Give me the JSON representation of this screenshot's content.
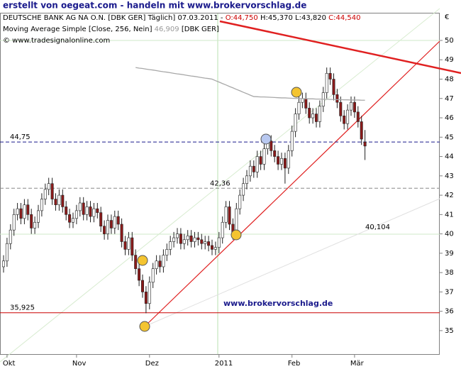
{
  "page_title": "erstellt von oegeat.com - handeln mit www.brokervorschlag.de",
  "chart_data": {
    "type": "candlestick",
    "header": {
      "instrument": "DEUTSCHE BANK AG NA O.N. [DBK GER]  Täglich] 07.03.2011 -",
      "open_text": "O:44,750",
      "hl_text": "H:45,370 L:43,820",
      "close_text": "C:44,540",
      "ma_name": "Moving Average Simple [Close, 256, Nein]",
      "ma_value": "46,909",
      "ma_symbol": "[DBK GER]",
      "source": "© www.tradesignalonline.com"
    },
    "watermark": "www.brokervorschlag.de",
    "currency": "€",
    "categories": [
      null,
      "Okt",
      null,
      null,
      null,
      null,
      null,
      null,
      null,
      null,
      null,
      null,
      null,
      null,
      null,
      null,
      null,
      null,
      null,
      null,
      null,
      "Nov",
      null,
      null,
      null,
      null,
      null,
      null,
      null,
      null,
      null,
      null,
      null,
      null,
      null,
      null,
      null,
      null,
      null,
      null,
      null,
      null,
      "Dez",
      null,
      null,
      null,
      null,
      null,
      null,
      null,
      null,
      null,
      null,
      null,
      null,
      null,
      null,
      null,
      null,
      null,
      null,
      null,
      "2011",
      null,
      null,
      null,
      null,
      null,
      null,
      null,
      null,
      null,
      null,
      null,
      null,
      null,
      null,
      null,
      null,
      null,
      null,
      null,
      null,
      "Feb",
      null,
      null,
      null,
      null,
      null,
      null,
      null,
      null,
      null,
      null,
      null,
      null,
      null,
      null,
      null,
      null,
      null,
      "Mär",
      null,
      null,
      null
    ],
    "open": [
      38.3,
      38.6,
      39.5,
      40.2,
      41.0,
      41.3,
      40.8,
      41.5,
      41.0,
      40.3,
      40.6,
      41.2,
      41.8,
      42.3,
      42.6,
      41.8,
      41.5,
      42.0,
      41.4,
      41.0,
      40.6,
      40.8,
      41.2,
      41.6,
      41.0,
      41.4,
      40.9,
      41.3,
      41.1,
      40.4,
      40.0,
      40.7,
      40.3,
      40.9,
      40.5,
      39.6,
      39.2,
      39.8,
      38.9,
      38.2,
      37.6,
      37.0,
      36.4,
      37.5,
      38.2,
      38.6,
      38.3,
      38.9,
      39.2,
      39.6,
      39.8,
      40.0,
      39.5,
      39.7,
      39.9,
      39.6,
      39.8,
      39.7,
      39.5,
      39.6,
      39.4,
      39.2,
      39.3,
      39.8,
      40.6,
      41.4,
      40.5,
      40.0,
      41.3,
      42.0,
      42.6,
      43.0,
      43.5,
      43.2,
      44.0,
      43.6,
      44.4,
      44.8,
      44.3,
      44.0,
      43.6,
      43.9,
      43.4,
      44.3,
      45.3,
      46.2,
      46.8,
      47.0,
      46.5,
      46.0,
      46.2,
      45.8,
      46.6,
      47.3,
      48.3,
      48.0,
      47.2,
      46.8,
      46.1,
      45.7,
      46.4,
      46.8,
      46.3,
      45.8,
      44.75
    ],
    "high": [
      38.9,
      39.8,
      40.5,
      41.3,
      41.6,
      41.6,
      41.8,
      41.8,
      41.3,
      40.9,
      41.5,
      42.1,
      42.6,
      42.9,
      42.9,
      42.1,
      42.3,
      42.3,
      41.7,
      41.3,
      41.1,
      41.5,
      41.9,
      41.9,
      41.7,
      41.7,
      41.6,
      41.6,
      41.4,
      40.7,
      41.0,
      41.0,
      41.2,
      41.2,
      40.8,
      39.9,
      40.1,
      40.1,
      39.2,
      38.5,
      37.9,
      37.3,
      37.8,
      38.5,
      38.9,
      38.9,
      39.2,
      39.5,
      39.9,
      40.1,
      40.3,
      40.3,
      40.0,
      40.2,
      40.2,
      40.1,
      40.1,
      40.0,
      39.9,
      39.9,
      39.7,
      39.6,
      40.1,
      40.9,
      41.7,
      41.7,
      40.8,
      41.6,
      42.3,
      42.9,
      43.3,
      43.8,
      43.8,
      44.3,
      44.3,
      44.7,
      45.1,
      45.1,
      44.6,
      44.3,
      44.2,
      44.2,
      44.6,
      45.6,
      46.5,
      47.1,
      47.3,
      47.3,
      46.8,
      46.5,
      46.5,
      46.9,
      47.6,
      48.6,
      48.6,
      48.3,
      47.5,
      47.1,
      46.4,
      46.7,
      47.1,
      47.1,
      46.6,
      46.1,
      45.37
    ],
    "low": [
      38.0,
      38.3,
      39.2,
      39.9,
      40.7,
      40.5,
      40.5,
      40.7,
      40.0,
      40.0,
      40.3,
      40.9,
      41.5,
      42.0,
      41.5,
      41.2,
      41.2,
      41.1,
      40.7,
      40.3,
      40.3,
      40.5,
      40.9,
      40.7,
      40.7,
      40.6,
      40.6,
      40.8,
      40.1,
      39.7,
      39.7,
      40.0,
      40.0,
      40.2,
      39.3,
      38.9,
      38.9,
      38.6,
      37.9,
      37.3,
      36.7,
      35.9,
      36.1,
      37.2,
      37.9,
      38.0,
      38.0,
      38.6,
      38.9,
      39.3,
      39.5,
      39.2,
      39.2,
      39.4,
      39.3,
      39.3,
      39.4,
      39.2,
      39.2,
      39.1,
      38.9,
      38.9,
      39.0,
      39.5,
      40.3,
      40.2,
      39.7,
      39.9,
      41.0,
      41.7,
      42.3,
      42.7,
      42.9,
      42.9,
      43.3,
      43.3,
      44.1,
      44.0,
      43.7,
      43.3,
      43.3,
      42.6,
      43.1,
      44.0,
      45.0,
      45.9,
      46.5,
      46.2,
      45.7,
      45.7,
      45.5,
      45.5,
      46.3,
      47.0,
      47.7,
      46.9,
      46.5,
      45.8,
      45.4,
      45.4,
      46.1,
      46.0,
      45.5,
      44.6,
      43.82
    ],
    "close": [
      38.6,
      39.5,
      40.2,
      41.0,
      41.3,
      40.8,
      41.5,
      41.0,
      40.3,
      40.6,
      41.2,
      41.8,
      42.3,
      42.6,
      41.8,
      41.5,
      42.0,
      41.4,
      41.0,
      40.6,
      40.8,
      41.2,
      41.6,
      41.0,
      41.4,
      40.9,
      41.3,
      41.1,
      40.4,
      40.0,
      40.7,
      40.3,
      40.9,
      40.5,
      39.6,
      39.2,
      39.8,
      38.9,
      38.2,
      37.6,
      37.0,
      36.4,
      37.5,
      38.2,
      38.6,
      38.3,
      38.9,
      39.2,
      39.6,
      39.8,
      40.0,
      39.5,
      39.7,
      39.9,
      39.6,
      39.8,
      39.7,
      39.5,
      39.6,
      39.4,
      39.2,
      39.3,
      39.8,
      40.6,
      41.4,
      40.5,
      40.0,
      41.3,
      42.0,
      42.6,
      43.0,
      43.5,
      43.2,
      44.0,
      43.6,
      44.4,
      44.8,
      44.3,
      44.0,
      43.6,
      43.9,
      43.4,
      44.3,
      45.3,
      46.2,
      46.8,
      47.0,
      46.5,
      46.0,
      46.2,
      45.8,
      46.6,
      47.3,
      48.3,
      48.0,
      47.2,
      46.8,
      46.1,
      45.7,
      46.4,
      46.8,
      46.3,
      45.8,
      44.9,
      44.54
    ],
    "up_color": "#ffffff",
    "down_color": "#8b1a1a",
    "ma": {
      "color": "#a8a8a8",
      "values": [
        null,
        null,
        null,
        null,
        null,
        null,
        null,
        null,
        null,
        null,
        null,
        null,
        null,
        null,
        null,
        null,
        null,
        null,
        null,
        null,
        null,
        null,
        null,
        null,
        null,
        null,
        null,
        null,
        null,
        null,
        null,
        null,
        null,
        null,
        null,
        null,
        null,
        null,
        48.6,
        48.57,
        48.55,
        48.52,
        48.49,
        48.47,
        48.44,
        48.41,
        48.38,
        48.36,
        48.33,
        48.3,
        48.27,
        48.25,
        48.22,
        48.19,
        48.16,
        48.14,
        48.11,
        48.08,
        48.05,
        48.03,
        48.0,
        47.92,
        47.85,
        47.77,
        47.7,
        47.62,
        47.55,
        47.47,
        47.4,
        47.32,
        47.25,
        47.17,
        47.1,
        47.09,
        47.08,
        47.08,
        47.07,
        47.06,
        47.05,
        47.04,
        47.03,
        47.03,
        47.02,
        47.01,
        47.0,
        47.0,
        46.99,
        46.99,
        46.98,
        46.98,
        46.97,
        46.97,
        46.96,
        46.96,
        46.95,
        46.95,
        46.94,
        46.94,
        46.93,
        46.93,
        46.92,
        46.92,
        46.92,
        46.91,
        46.909
      ]
    },
    "levels": [
      {
        "value": 44.75,
        "label": "44,75",
        "color": "#1a1a8c",
        "style": "dashed"
      },
      {
        "value": 42.36,
        "label": "42,36",
        "color": "#888888",
        "style": "dashed"
      },
      {
        "value": 35.925,
        "label": "35,925",
        "color": "#cc0000",
        "style": "solid"
      },
      {
        "value": 40.104,
        "label": "40,104",
        "color": "#b0b0b0",
        "style": "none"
      }
    ],
    "ylim": [
      33.75,
      51.43
    ],
    "yticks": [
      35,
      36,
      37,
      38,
      39,
      40,
      41,
      42,
      43,
      44,
      45,
      46,
      47,
      48,
      49,
      50
    ]
  }
}
